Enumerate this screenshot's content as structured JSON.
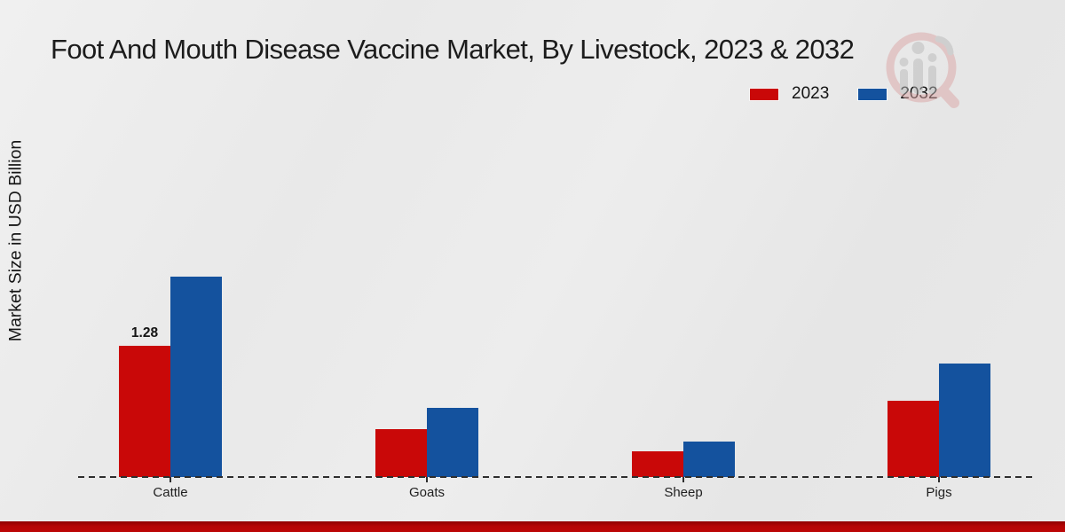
{
  "page": {
    "title": "Foot And Mouth Disease Vaccine Market, By Livestock, 2023 & 2032"
  },
  "axes": {
    "y_label": "Market Size in USD Billion"
  },
  "legend": {
    "items": [
      {
        "label": "2023",
        "color": "#c90808"
      },
      {
        "label": "2032",
        "color": "#14529e"
      }
    ]
  },
  "chart_data": {
    "type": "bar",
    "title": "Foot And Mouth Disease Vaccine Market, By Livestock, 2023 & 2032",
    "xlabel": "",
    "ylabel": "Market Size in USD Billion",
    "categories": [
      "Cattle",
      "Goats",
      "Sheep",
      "Pigs"
    ],
    "series": [
      {
        "name": "2023",
        "color": "#c90808",
        "values": [
          1.28,
          0.47,
          0.25,
          0.74
        ]
      },
      {
        "name": "2032",
        "color": "#14529e",
        "values": [
          1.95,
          0.67,
          0.35,
          1.11
        ]
      }
    ],
    "annotations": [
      {
        "series": "2023",
        "category": "Cattle",
        "text": "1.28"
      }
    ],
    "ylim": [
      0,
      2.1
    ],
    "grid": false,
    "legend_position": "top-right",
    "baseline_style": "dashed",
    "units": "USD Billion"
  },
  "watermark": {
    "icon": "mrfr-logo-watermark"
  },
  "footer": {
    "accent_color": "#b40505"
  }
}
